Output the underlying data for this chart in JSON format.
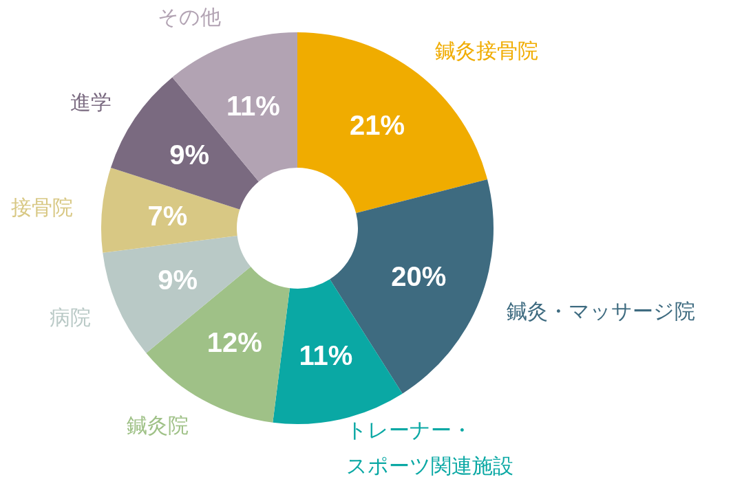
{
  "chart_data": {
    "type": "donut",
    "categories": [
      "鍼灸接骨院",
      "鍼灸・マッサージ院",
      "トレーナー・スポーツ関連施設",
      "鍼灸院",
      "病院",
      "接骨院",
      "進学",
      "その他"
    ],
    "values": [
      21,
      20,
      11,
      12,
      9,
      7,
      9,
      11
    ],
    "colors": [
      "#f0ac00",
      "#3e6b80",
      "#0aa8a4",
      "#9fc187",
      "#b9c9c6",
      "#d8c884",
      "#7a6a80",
      "#b2a3b3"
    ],
    "value_labels": [
      "21%",
      "20%",
      "11%",
      "12%",
      "9%",
      "7%",
      "9%",
      "11%"
    ],
    "legend": false
  }
}
